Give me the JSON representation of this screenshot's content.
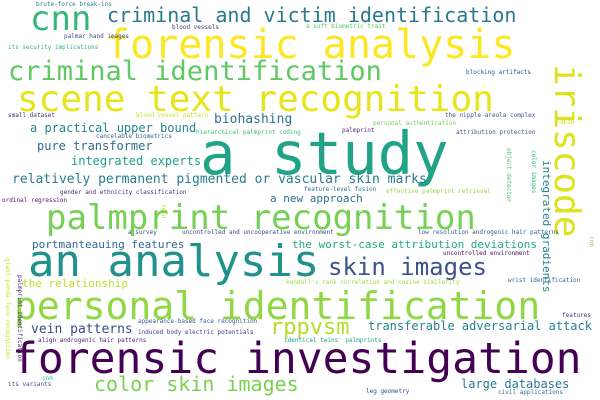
{
  "words": [
    {
      "text": "a study",
      "color": "#20a386"
    },
    {
      "text": "forensic investigation",
      "color": "#440154"
    },
    {
      "text": "forensic analysis",
      "color": "#fde725"
    },
    {
      "text": "scene text recognition",
      "color": "#e7e419"
    },
    {
      "text": "an analysis",
      "color": "#21918c"
    },
    {
      "text": "palmprint recognition",
      "color": "#75d054"
    },
    {
      "text": "personal identification",
      "color": "#8fd744"
    },
    {
      "text": "iriscode",
      "color": "#dde318"
    },
    {
      "text": "criminal identification",
      "color": "#5ec962"
    },
    {
      "text": "criminal and victim identification",
      "color": "#2a788e"
    },
    {
      "text": "cnn",
      "color": "#35b779"
    },
    {
      "text": "skin images",
      "color": "#3b528b"
    },
    {
      "text": "rppvsm",
      "color": "#b5de2b"
    },
    {
      "text": "color skin images",
      "color": "#7ad151"
    },
    {
      "text": "relatively permanent pigmented or vascular skin marks",
      "color": "#287c8e"
    },
    {
      "text": "biohashing",
      "color": "#2c728e"
    },
    {
      "text": "a practical upper bound",
      "color": "#25858e"
    },
    {
      "text": "pure transformer",
      "color": "#2f6c8e"
    },
    {
      "text": "integrated experts",
      "color": "#1fa088"
    },
    {
      "text": "vein patterns",
      "color": "#3e4989"
    },
    {
      "text": "transferable adversarial attack",
      "color": "#26828e"
    },
    {
      "text": "large databases",
      "color": "#297b8e"
    },
    {
      "text": "portmanteauing features",
      "color": "#31688e"
    },
    {
      "text": "the worst-case attribution deviations",
      "color": "#22a884"
    },
    {
      "text": "a new approach",
      "color": "#2e6e8e"
    },
    {
      "text": "integrated gradients",
      "color": "#25848e"
    },
    {
      "text": "the relationship",
      "color": "#bddf26"
    },
    {
      "text": "brute-force break-ins",
      "color": "#277f8e"
    },
    {
      "text": "palmar hand images",
      "color": "#3f4788"
    },
    {
      "text": "its security implications",
      "color": "#2fb47c"
    },
    {
      "text": "blood vessels",
      "color": "#443a83"
    },
    {
      "text": "a soft biometric trait",
      "color": "#56c667"
    },
    {
      "text": "blocking artifacts",
      "color": "#3b528b"
    },
    {
      "text": "small dataset",
      "color": "#472c7a"
    },
    {
      "text": "blood vessel pattern",
      "color": "#c8e020"
    },
    {
      "text": "personal authentication",
      "color": "#6ccd5a"
    },
    {
      "text": "the nipple-areola complex",
      "color": "#3a548c"
    },
    {
      "text": "attribution protection",
      "color": "#38588c"
    },
    {
      "text": "cancelable biometrics",
      "color": "#33638d"
    },
    {
      "text": "hierarchical palmprint coding",
      "color": "#3dbc74"
    },
    {
      "text": "palmprint",
      "color": "#46337e"
    },
    {
      "text": "feature-level fusion",
      "color": "#2a768e"
    },
    {
      "text": "effective palmprint retrieval",
      "color": "#93d741"
    },
    {
      "text": "object detector",
      "color": "#4ac16d"
    },
    {
      "text": "color images",
      "color": "#2db27d"
    },
    {
      "text": "gender and ethnicity classification",
      "color": "#46307e"
    },
    {
      "text": "ordinal regression",
      "color": "#48186a"
    },
    {
      "text": "a survey",
      "color": "#3e4a89"
    },
    {
      "text": "uncontrolled and uncooperative environment",
      "color": "#3e4c8a"
    },
    {
      "text": "low resolution androgenic hair patterns",
      "color": "#34618d"
    },
    {
      "text": "uncontrolled environment",
      "color": "#471164"
    },
    {
      "text": "kendall's rank correlation and cosine similarity",
      "color": "#9fda3a"
    },
    {
      "text": "wrist identification",
      "color": "#31678e"
    },
    {
      "text": "appearance-based face recognition",
      "color": "#34608d"
    },
    {
      "text": "induced body electric potentials",
      "color": "#443983"
    },
    {
      "text": "align androgenic hair patterns",
      "color": "#482173"
    },
    {
      "text": "identical twins' palmprints",
      "color": "#1fa187"
    },
    {
      "text": "leg geometry",
      "color": "#3c4f8a"
    },
    {
      "text": "civil applications",
      "color": "#2c718e"
    },
    {
      "text": "its variants",
      "color": "#3b528b"
    },
    {
      "text": "features",
      "color": "#424086"
    },
    {
      "text": "palmprint identification",
      "color": "#482878"
    },
    {
      "text": "giant panda face recognition",
      "color": "#d2e21b"
    },
    {
      "text": "vein",
      "color": "#c0df25"
    },
    {
      "text": "cnn",
      "color": "#2ab07f"
    },
    {
      "text": "skin",
      "color": "#c2df23"
    },
    {
      "text": "cnn",
      "color": "#6ece58"
    }
  ]
}
